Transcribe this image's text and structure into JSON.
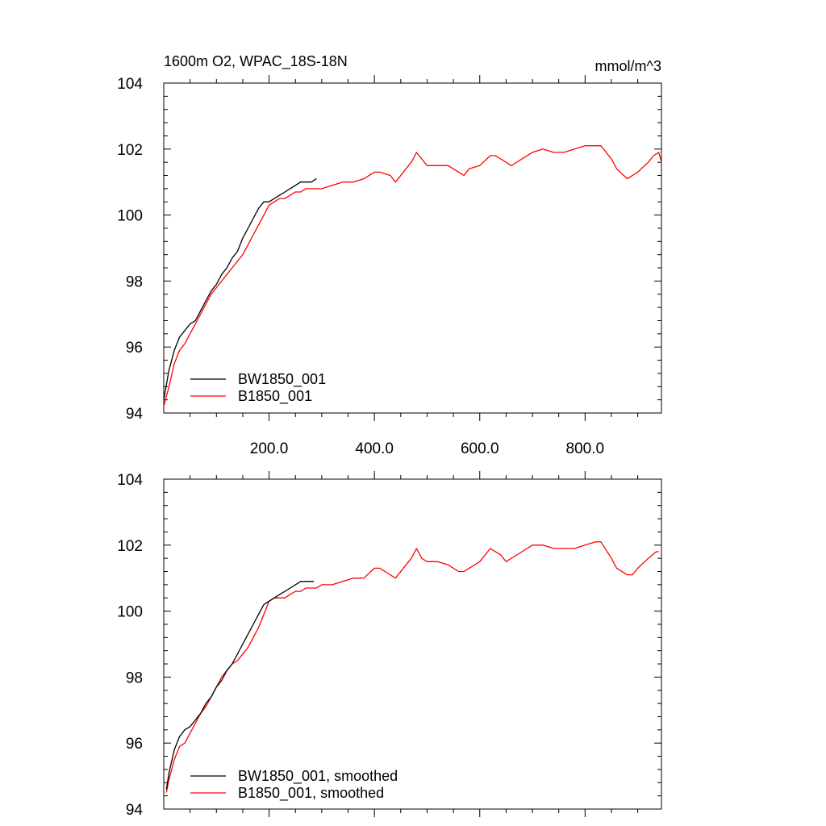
{
  "figure": {
    "title_left": "1600m O2, WPAC_18S-18N",
    "title_right": "mmol/m^3"
  },
  "colors": {
    "BW1850_001": "#000000",
    "B1850_001": "#ff0000"
  },
  "chart_data": [
    {
      "type": "line",
      "title": "1600m O2, WPAC_18S-18N",
      "units": "mmol/m^3",
      "xlim": [
        0,
        945
      ],
      "ylim": [
        94,
        104
      ],
      "xticks": [
        200,
        400,
        600,
        800
      ],
      "xtick_labels": [
        "200.0",
        "400.0",
        "600.0",
        "800.0"
      ],
      "yticks": [
        94,
        96,
        98,
        100,
        102,
        104
      ],
      "ytick_labels": [
        "94",
        "96",
        "98",
        "100",
        "102",
        "104"
      ],
      "grid": false,
      "legend": "bottom-left",
      "legend_labels": [
        "BW1850_001",
        "B1850_001"
      ],
      "series": [
        {
          "name": "BW1850_001",
          "color": "#000000",
          "x": [
            0,
            10,
            20,
            30,
            40,
            50,
            60,
            70,
            80,
            90,
            100,
            110,
            120,
            130,
            140,
            150,
            160,
            170,
            180,
            190,
            200,
            210,
            220,
            230,
            240,
            250,
            260,
            270,
            280,
            290
          ],
          "y": [
            94.4,
            95.3,
            95.9,
            96.3,
            96.5,
            96.7,
            96.8,
            97.1,
            97.4,
            97.7,
            97.9,
            98.2,
            98.4,
            98.7,
            98.9,
            99.3,
            99.6,
            99.9,
            100.2,
            100.4,
            100.4,
            100.5,
            100.6,
            100.7,
            100.8,
            100.9,
            101.0,
            101.0,
            101.0,
            101.1
          ]
        },
        {
          "name": "B1850_001",
          "color": "#ff0000",
          "x": [
            0,
            10,
            20,
            30,
            40,
            50,
            60,
            70,
            80,
            90,
            100,
            110,
            120,
            130,
            140,
            150,
            160,
            170,
            180,
            190,
            200,
            210,
            220,
            230,
            240,
            250,
            260,
            270,
            280,
            290,
            300,
            320,
            340,
            360,
            380,
            400,
            410,
            430,
            440,
            460,
            470,
            480,
            490,
            500,
            520,
            540,
            560,
            570,
            580,
            600,
            620,
            630,
            650,
            660,
            680,
            700,
            720,
            740,
            760,
            780,
            800,
            830,
            850,
            860,
            880,
            900,
            920,
            930,
            940,
            945
          ],
          "y": [
            94.2,
            94.8,
            95.5,
            95.9,
            96.1,
            96.4,
            96.7,
            97.0,
            97.3,
            97.6,
            97.8,
            98.0,
            98.2,
            98.4,
            98.6,
            98.8,
            99.1,
            99.4,
            99.7,
            100.0,
            100.3,
            100.4,
            100.5,
            100.5,
            100.6,
            100.7,
            100.7,
            100.8,
            100.8,
            100.8,
            100.8,
            100.9,
            101.0,
            101.0,
            101.1,
            101.3,
            101.3,
            101.2,
            101.0,
            101.4,
            101.6,
            101.9,
            101.7,
            101.5,
            101.5,
            101.5,
            101.3,
            101.2,
            101.4,
            101.5,
            101.8,
            101.8,
            101.6,
            101.5,
            101.7,
            101.9,
            102.0,
            101.9,
            101.9,
            102.0,
            102.1,
            102.1,
            101.7,
            101.4,
            101.1,
            101.3,
            101.6,
            101.8,
            101.9,
            101.6
          ]
        }
      ]
    },
    {
      "type": "line",
      "xlim": [
        0,
        945
      ],
      "ylim": [
        94,
        104
      ],
      "yticks": [
        94,
        96,
        98,
        100,
        102,
        104
      ],
      "ytick_labels": [
        "94",
        "96",
        "98",
        "100",
        "102",
        "104"
      ],
      "grid": false,
      "legend": "bottom-left",
      "legend_labels": [
        "BW1850_001, smoothed",
        "B1850_001, smoothed"
      ],
      "series": [
        {
          "name": "BW1850_001, smoothed",
          "color": "#000000",
          "x": [
            5,
            10,
            20,
            30,
            40,
            50,
            60,
            70,
            80,
            90,
            100,
            110,
            120,
            130,
            140,
            150,
            160,
            170,
            180,
            190,
            200,
            210,
            220,
            230,
            240,
            250,
            260,
            270,
            280,
            285
          ],
          "y": [
            94.6,
            95.1,
            95.8,
            96.2,
            96.4,
            96.5,
            96.7,
            96.9,
            97.2,
            97.4,
            97.7,
            97.9,
            98.2,
            98.4,
            98.7,
            99.0,
            99.3,
            99.6,
            99.9,
            100.2,
            100.3,
            100.4,
            100.5,
            100.6,
            100.7,
            100.8,
            100.9,
            100.9,
            100.9,
            100.9
          ]
        },
        {
          "name": "B1850_001, smoothed",
          "color": "#ff0000",
          "x": [
            5,
            10,
            20,
            30,
            40,
            50,
            60,
            70,
            80,
            90,
            100,
            110,
            120,
            130,
            140,
            150,
            160,
            170,
            180,
            190,
            200,
            210,
            220,
            230,
            240,
            250,
            260,
            270,
            280,
            290,
            300,
            320,
            340,
            360,
            380,
            400,
            410,
            420,
            440,
            460,
            470,
            480,
            490,
            500,
            520,
            540,
            560,
            570,
            580,
            600,
            610,
            620,
            640,
            650,
            660,
            680,
            700,
            720,
            740,
            760,
            780,
            800,
            820,
            830,
            850,
            860,
            880,
            890,
            900,
            920,
            935,
            940
          ],
          "y": [
            94.5,
            94.9,
            95.5,
            95.9,
            96.0,
            96.3,
            96.6,
            96.9,
            97.1,
            97.4,
            97.7,
            98.0,
            98.2,
            98.4,
            98.5,
            98.7,
            98.9,
            99.2,
            99.5,
            99.9,
            100.3,
            100.4,
            100.4,
            100.4,
            100.5,
            100.6,
            100.6,
            100.7,
            100.7,
            100.7,
            100.8,
            100.8,
            100.9,
            101.0,
            101.0,
            101.3,
            101.3,
            101.2,
            101.0,
            101.4,
            101.6,
            101.9,
            101.6,
            101.5,
            101.5,
            101.4,
            101.2,
            101.2,
            101.3,
            101.5,
            101.7,
            101.9,
            101.7,
            101.5,
            101.6,
            101.8,
            102.0,
            102.0,
            101.9,
            101.9,
            101.9,
            102.0,
            102.1,
            102.1,
            101.6,
            101.3,
            101.1,
            101.1,
            101.3,
            101.6,
            101.8,
            101.8
          ]
        }
      ]
    }
  ]
}
